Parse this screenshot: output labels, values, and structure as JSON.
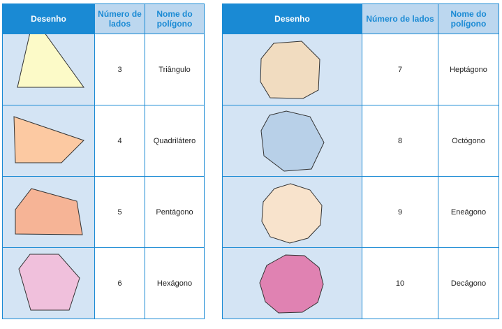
{
  "headers": {
    "drawing": "Desenho",
    "sides": "Número de lados",
    "name": "Nome do polígono"
  },
  "left_rows": [
    {
      "sides": "3",
      "name": "Triângulo",
      "color": "#fcfac8"
    },
    {
      "sides": "4",
      "name": "Quadrilátero",
      "color": "#fcc9a2"
    },
    {
      "sides": "5",
      "name": "Pentágono",
      "color": "#f6b496"
    },
    {
      "sides": "6",
      "name": "Hexágono",
      "color": "#f0c0dc"
    }
  ],
  "right_rows": [
    {
      "sides": "7",
      "name": "Heptágono",
      "color": "#f1dcc0"
    },
    {
      "sides": "8",
      "name": "Octógono",
      "color": "#b8d0e8"
    },
    {
      "sides": "9",
      "name": "Eneágono",
      "color": "#f8e3cc"
    },
    {
      "sides": "10",
      "name": "Decágono",
      "color": "#e082b2"
    }
  ]
}
